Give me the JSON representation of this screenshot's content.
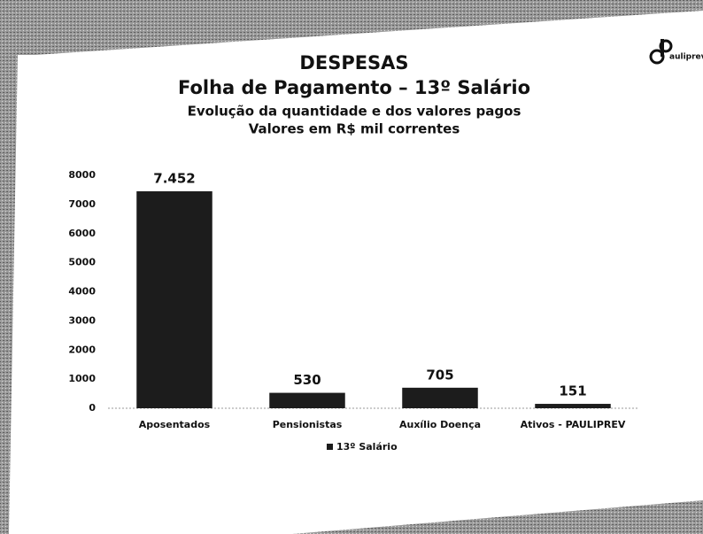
{
  "chart_data": {
    "type": "bar",
    "title": "DESPESAS",
    "subtitle": [
      "Folha de Pagamento – 13º Salário",
      "Evolução da quantidade e dos valores pagos",
      "Valores em R$ mil correntes"
    ],
    "logo": "auliprev",
    "categories": [
      "Aposentados",
      "Pensionistas",
      "Auxílio Doença",
      "Ativos - PAULIPREV"
    ],
    "series": [
      {
        "name": "13º Salário",
        "color": "#1c1c1c",
        "values": [
          7452,
          530,
          705,
          151
        ],
        "value_labels": [
          "7.452",
          "530",
          "705",
          "151"
        ]
      }
    ],
    "ylim": [
      0,
      8000
    ],
    "yticks": [
      0,
      1000,
      2000,
      3000,
      4000,
      5000,
      6000,
      7000,
      8000
    ],
    "grid": false,
    "legend": "bottom"
  }
}
